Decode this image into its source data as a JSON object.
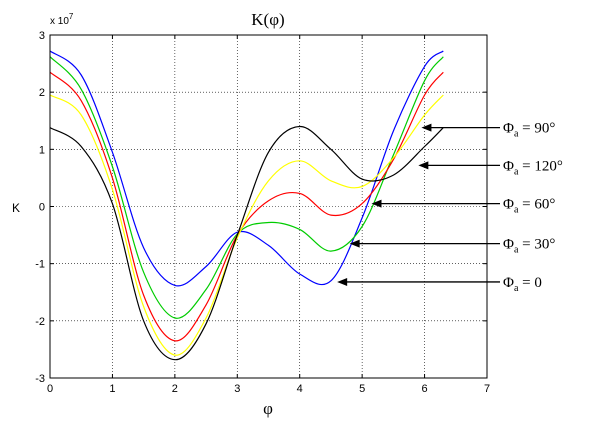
{
  "chart_data": {
    "type": "line",
    "title": "K(φ)",
    "xlabel": "φ",
    "ylabel": "K",
    "y_scale_label": "x 10",
    "y_scale_exponent": "7",
    "xlim": [
      0,
      7
    ],
    "ylim": [
      -3,
      3
    ],
    "xticks": [
      "0",
      "1",
      "2",
      "3",
      "4",
      "5",
      "6",
      "7"
    ],
    "yticks": [
      "-3",
      "-2",
      "-1",
      "0",
      "1",
      "2",
      "3"
    ],
    "grid": true,
    "series": [
      {
        "name": "Φa = 0",
        "color": "#0000ff",
        "x": [
          0.0,
          0.5,
          1.0,
          1.5,
          2.0,
          2.5,
          3.0,
          3.5,
          4.0,
          4.5,
          5.0,
          5.5,
          6.0,
          6.3
        ],
        "y": [
          2.72,
          2.3,
          0.95,
          -0.72,
          -1.38,
          -1.05,
          -0.45,
          -0.68,
          -1.18,
          -1.3,
          -0.2,
          1.32,
          2.45,
          2.72
        ]
      },
      {
        "name": "Φa = 30°",
        "color": "#00cc00",
        "x": [
          0.0,
          0.5,
          1.0,
          1.5,
          2.0,
          2.5,
          3.0,
          3.5,
          4.0,
          4.5,
          5.0,
          5.5,
          6.0,
          6.3
        ],
        "y": [
          2.62,
          2.05,
          0.7,
          -1.15,
          -1.95,
          -1.45,
          -0.48,
          -0.28,
          -0.4,
          -0.78,
          -0.35,
          0.9,
          2.2,
          2.62
        ]
      },
      {
        "name": "Φa = 60°",
        "color": "#ff0000",
        "x": [
          0.0,
          0.5,
          1.0,
          1.5,
          2.0,
          2.5,
          3.0,
          3.5,
          4.0,
          4.5,
          5.0,
          5.5,
          6.0,
          6.3
        ],
        "y": [
          2.35,
          1.85,
          0.5,
          -1.55,
          -2.35,
          -1.72,
          -0.5,
          0.1,
          0.23,
          -0.15,
          0.05,
          0.82,
          1.95,
          2.35
        ]
      },
      {
        "name": "Φa = 120°",
        "color": "#ffff00",
        "x": [
          0.0,
          0.5,
          1.0,
          1.5,
          2.0,
          2.5,
          3.0,
          3.5,
          4.0,
          4.5,
          5.0,
          5.5,
          6.0,
          6.3
        ],
        "y": [
          1.95,
          1.6,
          0.3,
          -1.75,
          -2.6,
          -1.95,
          -0.55,
          0.45,
          0.8,
          0.45,
          0.35,
          0.85,
          1.6,
          1.95
        ]
      },
      {
        "name": "Φa = 90°",
        "color": "#000000",
        "x": [
          0.0,
          0.5,
          1.0,
          1.5,
          2.0,
          2.5,
          3.0,
          3.5,
          4.0,
          4.5,
          5.0,
          5.5,
          6.0,
          6.3
        ],
        "y": [
          1.38,
          1.05,
          0.05,
          -2.0,
          -2.68,
          -2.05,
          -0.5,
          0.95,
          1.4,
          1.0,
          0.48,
          0.55,
          1.05,
          1.38
        ]
      }
    ],
    "annotations": [
      {
        "greek": "Φ",
        "sub": "a",
        "rest": " = 90°",
        "y": 1.38,
        "tip_x": 5.95
      },
      {
        "greek": "Φ",
        "sub": "a",
        "rest": " = 120°",
        "y": 0.72,
        "tip_x": 5.9
      },
      {
        "greek": "Φ",
        "sub": "a",
        "rest": " = 60°",
        "y": 0.05,
        "tip_x": 5.15
      },
      {
        "greek": "Φ",
        "sub": "a",
        "rest": " = 30°",
        "y": -0.65,
        "tip_x": 4.8
      },
      {
        "greek": "Φ",
        "sub": "a",
        "rest": " = 0",
        "y": -1.32,
        "tip_x": 4.6
      }
    ]
  }
}
